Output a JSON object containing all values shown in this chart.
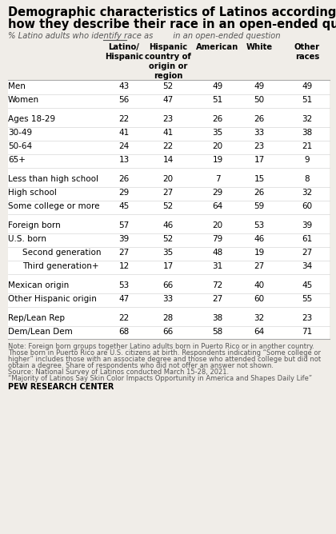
{
  "title_line1": "Demographic characteristics of Latinos according to",
  "title_line2": "how they describe their race in an open-ended question",
  "subtitle": "% Latino adults who identify race as _____ in an open-ended question",
  "col_headers": [
    "Latino/\nHispanic",
    "Hispanic\ncountry of\norigin or\nregion",
    "American",
    "White",
    "Other\nraces"
  ],
  "rows": [
    {
      "label": "Men",
      "values": [
        43,
        52,
        49,
        49,
        49
      ],
      "indent": 0,
      "spacer": false
    },
    {
      "label": "Women",
      "values": [
        56,
        47,
        51,
        50,
        51
      ],
      "indent": 0,
      "spacer": false
    },
    {
      "label": "",
      "values": null,
      "indent": 0,
      "spacer": true
    },
    {
      "label": "Ages 18-29",
      "values": [
        22,
        23,
        26,
        26,
        32
      ],
      "indent": 0,
      "spacer": false
    },
    {
      "label": "30-49",
      "values": [
        41,
        41,
        35,
        33,
        38
      ],
      "indent": 0,
      "spacer": false
    },
    {
      "label": "50-64",
      "values": [
        24,
        22,
        20,
        23,
        21
      ],
      "indent": 0,
      "spacer": false
    },
    {
      "label": "65+",
      "values": [
        13,
        14,
        19,
        17,
        9
      ],
      "indent": 0,
      "spacer": false
    },
    {
      "label": "",
      "values": null,
      "indent": 0,
      "spacer": true
    },
    {
      "label": "Less than high school",
      "values": [
        26,
        20,
        7,
        15,
        8
      ],
      "indent": 0,
      "spacer": false
    },
    {
      "label": "High school",
      "values": [
        29,
        27,
        29,
        26,
        32
      ],
      "indent": 0,
      "spacer": false
    },
    {
      "label": "Some college or more",
      "values": [
        45,
        52,
        64,
        59,
        60
      ],
      "indent": 0,
      "spacer": false
    },
    {
      "label": "",
      "values": null,
      "indent": 0,
      "spacer": true
    },
    {
      "label": "Foreign born",
      "values": [
        57,
        46,
        20,
        53,
        39
      ],
      "indent": 0,
      "spacer": false
    },
    {
      "label": "U.S. born",
      "values": [
        39,
        52,
        79,
        46,
        61
      ],
      "indent": 0,
      "spacer": false
    },
    {
      "label": "Second generation",
      "values": [
        27,
        35,
        48,
        19,
        27
      ],
      "indent": 1,
      "spacer": false
    },
    {
      "label": "Third generation+",
      "values": [
        12,
        17,
        31,
        27,
        34
      ],
      "indent": 1,
      "spacer": false
    },
    {
      "label": "",
      "values": null,
      "indent": 0,
      "spacer": true
    },
    {
      "label": "Mexican origin",
      "values": [
        53,
        66,
        72,
        40,
        45
      ],
      "indent": 0,
      "spacer": false
    },
    {
      "label": "Other Hispanic origin",
      "values": [
        47,
        33,
        27,
        60,
        55
      ],
      "indent": 0,
      "spacer": false
    },
    {
      "label": "",
      "values": null,
      "indent": 0,
      "spacer": true
    },
    {
      "label": "Rep/Lean Rep",
      "values": [
        22,
        28,
        38,
        32,
        23
      ],
      "indent": 0,
      "spacer": false
    },
    {
      "label": "Dem/Lean Dem",
      "values": [
        68,
        66,
        58,
        64,
        71
      ],
      "indent": 0,
      "spacer": false
    }
  ],
  "note_lines": [
    "Note: Foreign born groups together Latino adults born in Puerto Rico or in another country.",
    "Those born in Puerto Rico are U.S. citizens at birth. Respondents indicating “Some college or",
    "higher” includes those with an associate degree and those who attended college but did not",
    "obtain a degree. Share of respondents who did not offer an answer not shown.",
    "Source: National Survey of Latinos conducted March 15-28, 2021.",
    "“Majority of Latinos Say Skin Color Impacts Opportunity in America and Shapes Daily Life”"
  ],
  "source_org": "PEW RESEARCH CENTER",
  "bg_color": "#f0ede8",
  "header_color": "#000000",
  "text_color": "#000000",
  "note_color": "#555555",
  "sep_color_dark": "#aaaaaa",
  "sep_color_light": "#d8d8d8"
}
